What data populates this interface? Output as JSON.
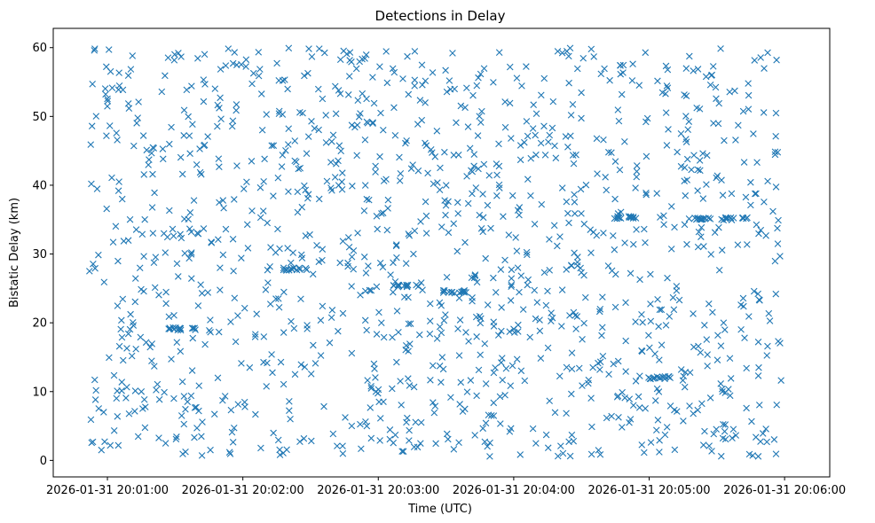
{
  "chart_data": {
    "type": "scatter",
    "title": "Detections in Delay",
    "xlabel": "Time (UTC)",
    "ylabel": "Bistatic Delay (km)",
    "marker": "x",
    "color": "#1f77b4",
    "grid": false,
    "x_ticks": [
      "2026-01-31 20:01:00",
      "2026-01-31 20:02:00",
      "2026-01-31 20:03:00",
      "2026-01-31 20:04:00",
      "2026-01-31 20:05:00",
      "2026-01-31 20:06:00"
    ],
    "y_ticks": [
      0,
      10,
      20,
      30,
      40,
      50,
      60
    ],
    "xlim": [
      "2026-01-31 20:00:36",
      "2026-01-31 20:06:20"
    ],
    "ylim": [
      -2.4,
      62.8
    ],
    "clusters": [
      {
        "x": "2026-01-31 20:05:23",
        "y": 35.1
      },
      {
        "x": "2026-01-31 20:05:38",
        "y": 35.1
      },
      {
        "x": "2026-01-31 20:05:05",
        "y": 12.0
      },
      {
        "x": "2026-01-31 20:03:12",
        "y": 25.3
      },
      {
        "x": "2026-01-31 20:03:34",
        "y": 24.5
      },
      {
        "x": "2026-01-31 20:01:33",
        "y": 19.1
      },
      {
        "x": "2026-01-31 20:04:49",
        "y": 35.3
      },
      {
        "x": "2026-01-31 20:02:24",
        "y": 27.8
      }
    ],
    "point_count": 1400,
    "x_range": [
      "2026-01-31 20:00:52",
      "2026-01-31 20:05:59"
    ],
    "y_range": [
      0.5,
      60
    ]
  }
}
